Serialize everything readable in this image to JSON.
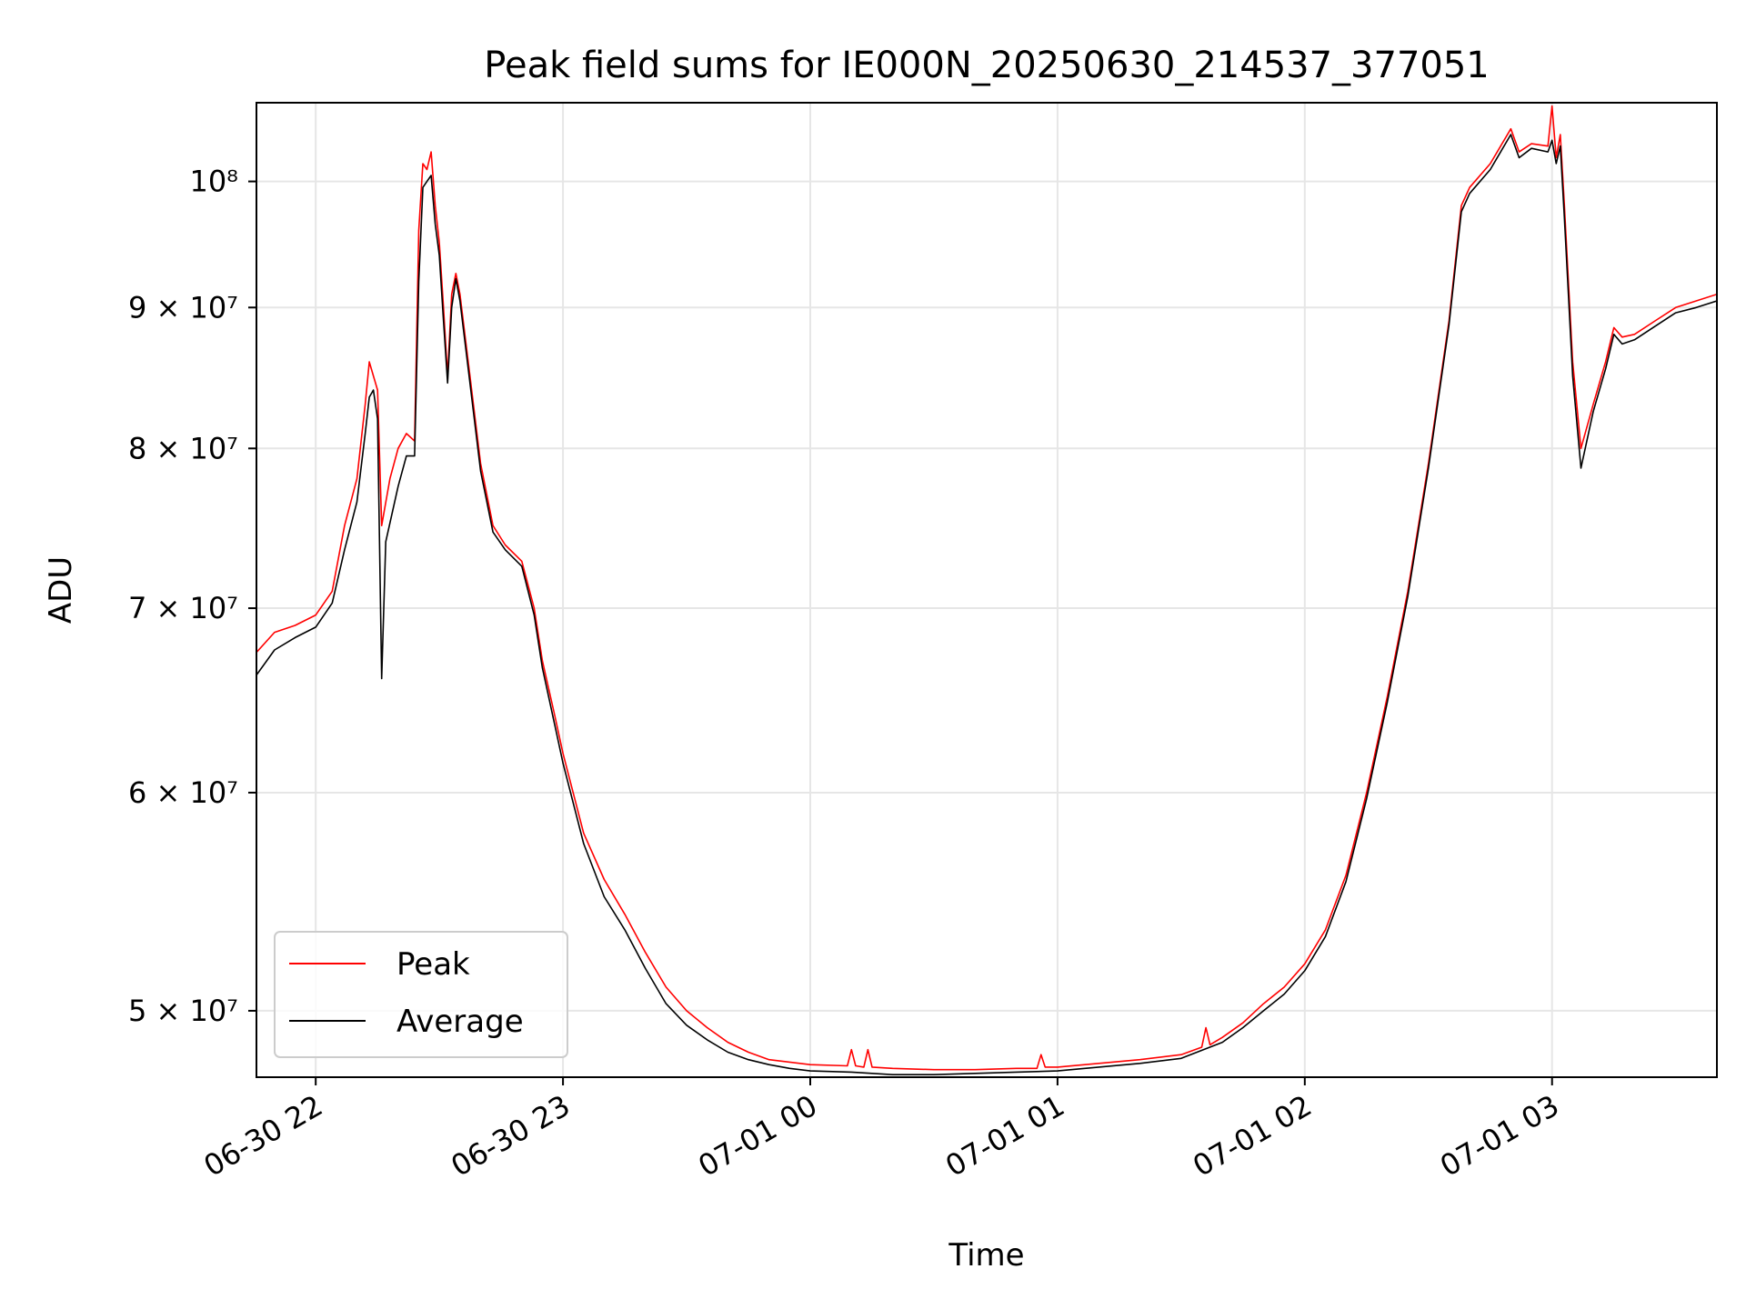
{
  "chart_data": {
    "type": "line",
    "title": "Peak field sums for IE000N_20250630_214537_377051",
    "xlabel": "Time",
    "ylabel": "ADU",
    "yscale": "log",
    "xlim": [
      "2025-06-30 21:45:37",
      "2025-07-01 03:40:00"
    ],
    "ylim": [
      47300000,
      106800000
    ],
    "grid": true,
    "legend_position": "lower-left",
    "x_ticks": [
      {
        "value": "2025-06-30 22:00",
        "label": "06-30 22"
      },
      {
        "value": "2025-06-30 23:00",
        "label": "06-30 23"
      },
      {
        "value": "2025-07-01 00:00",
        "label": "07-01 00"
      },
      {
        "value": "2025-07-01 01:00",
        "label": "07-01 01"
      },
      {
        "value": "2025-07-01 02:00",
        "label": "07-01 02"
      },
      {
        "value": "2025-07-01 03:00",
        "label": "07-01 03"
      }
    ],
    "y_ticks": [
      {
        "value": 50000000,
        "label": "5 × 10⁷"
      },
      {
        "value": 60000000,
        "label": "6 × 10⁷"
      },
      {
        "value": 70000000,
        "label": "7 × 10⁷"
      },
      {
        "value": 80000000,
        "label": "8 × 10⁷"
      },
      {
        "value": 90000000,
        "label": "9 × 10⁷"
      },
      {
        "value": 100000000,
        "label": "10⁸"
      }
    ],
    "series": [
      {
        "name": "Peak",
        "color": "#ff0000",
        "points": [
          [
            "2025-06-30 21:45",
            67300000
          ],
          [
            "2025-06-30 21:50",
            68600000
          ],
          [
            "2025-06-30 21:55",
            69000000
          ],
          [
            "2025-06-30 22:00",
            69600000
          ],
          [
            "2025-06-30 22:04",
            71000000
          ],
          [
            "2025-06-30 22:07",
            75000000
          ],
          [
            "2025-06-30 22:10",
            78000000
          ],
          [
            "2025-06-30 22:12",
            83000000
          ],
          [
            "2025-06-30 22:13",
            86000000
          ],
          [
            "2025-06-30 22:14",
            85000000
          ],
          [
            "2025-06-30 22:15",
            84000000
          ],
          [
            "2025-06-30 22:16",
            75000000
          ],
          [
            "2025-06-30 22:18",
            78000000
          ],
          [
            "2025-06-30 22:20",
            80000000
          ],
          [
            "2025-06-30 22:22",
            81000000
          ],
          [
            "2025-06-30 22:24",
            80500000
          ],
          [
            "2025-06-30 22:25",
            96000000
          ],
          [
            "2025-06-30 22:26",
            101500000
          ],
          [
            "2025-06-30 22:27",
            101000000
          ],
          [
            "2025-06-30 22:28",
            102500000
          ],
          [
            "2025-06-30 22:29",
            98000000
          ],
          [
            "2025-06-30 22:30",
            95000000
          ],
          [
            "2025-06-30 22:31",
            90000000
          ],
          [
            "2025-06-30 22:32",
            85000000
          ],
          [
            "2025-06-30 22:33",
            91000000
          ],
          [
            "2025-06-30 22:34",
            92600000
          ],
          [
            "2025-06-30 22:35",
            91000000
          ],
          [
            "2025-06-30 22:37",
            86000000
          ],
          [
            "2025-06-30 22:40",
            79000000
          ],
          [
            "2025-06-30 22:43",
            75000000
          ],
          [
            "2025-06-30 22:46",
            73800000
          ],
          [
            "2025-06-30 22:50",
            72800000
          ],
          [
            "2025-06-30 22:53",
            70000000
          ],
          [
            "2025-06-30 22:55",
            67000000
          ],
          [
            "2025-06-30 22:58",
            64000000
          ],
          [
            "2025-06-30 23:00",
            62000000
          ],
          [
            "2025-06-30 23:05",
            58000000
          ],
          [
            "2025-06-30 23:10",
            55800000
          ],
          [
            "2025-06-30 23:15",
            54200000
          ],
          [
            "2025-06-30 23:20",
            52500000
          ],
          [
            "2025-06-30 23:25",
            51000000
          ],
          [
            "2025-06-30 23:30",
            50000000
          ],
          [
            "2025-06-30 23:35",
            49300000
          ],
          [
            "2025-06-30 23:40",
            48700000
          ],
          [
            "2025-06-30 23:45",
            48300000
          ],
          [
            "2025-06-30 23:50",
            48000000
          ],
          [
            "2025-06-30 23:55",
            47900000
          ],
          [
            "2025-07-01 00:00",
            47800000
          ],
          [
            "2025-07-01 00:09",
            47750000
          ],
          [
            "2025-07-01 00:10",
            48400000
          ],
          [
            "2025-07-01 00:11",
            47750000
          ],
          [
            "2025-07-01 00:13",
            47700000
          ],
          [
            "2025-07-01 00:14",
            48400000
          ],
          [
            "2025-07-01 00:15",
            47700000
          ],
          [
            "2025-07-01 00:20",
            47650000
          ],
          [
            "2025-07-01 00:30",
            47600000
          ],
          [
            "2025-07-01 00:40",
            47600000
          ],
          [
            "2025-07-01 00:50",
            47650000
          ],
          [
            "2025-07-01 00:55",
            47650000
          ],
          [
            "2025-07-01 00:56",
            48200000
          ],
          [
            "2025-07-01 00:57",
            47700000
          ],
          [
            "2025-07-01 01:00",
            47700000
          ],
          [
            "2025-07-01 01:10",
            47850000
          ],
          [
            "2025-07-01 01:20",
            48000000
          ],
          [
            "2025-07-01 01:30",
            48200000
          ],
          [
            "2025-07-01 01:35",
            48500000
          ],
          [
            "2025-07-01 01:36",
            49300000
          ],
          [
            "2025-07-01 01:37",
            48600000
          ],
          [
            "2025-07-01 01:40",
            48900000
          ],
          [
            "2025-07-01 01:45",
            49500000
          ],
          [
            "2025-07-01 01:50",
            50300000
          ],
          [
            "2025-07-01 01:55",
            51000000
          ],
          [
            "2025-07-01 02:00",
            52000000
          ],
          [
            "2025-07-01 02:05",
            53500000
          ],
          [
            "2025-07-01 02:10",
            56000000
          ],
          [
            "2025-07-01 02:15",
            60000000
          ],
          [
            "2025-07-01 02:20",
            65000000
          ],
          [
            "2025-07-01 02:25",
            71000000
          ],
          [
            "2025-07-01 02:30",
            79000000
          ],
          [
            "2025-07-01 02:35",
            89000000
          ],
          [
            "2025-07-01 02:38",
            98000000
          ],
          [
            "2025-07-01 02:40",
            99500000
          ],
          [
            "2025-07-01 02:45",
            101500000
          ],
          [
            "2025-07-01 02:50",
            104500000
          ],
          [
            "2025-07-01 02:52",
            102500000
          ],
          [
            "2025-07-01 02:55",
            103200000
          ],
          [
            "2025-07-01 02:59",
            103000000
          ],
          [
            "2025-07-01 03:00",
            106500000
          ],
          [
            "2025-07-01 03:01",
            102000000
          ],
          [
            "2025-07-01 03:02",
            104000000
          ],
          [
            "2025-07-01 03:03",
            98000000
          ],
          [
            "2025-07-01 03:05",
            86000000
          ],
          [
            "2025-07-01 03:07",
            80000000
          ],
          [
            "2025-07-01 03:10",
            83000000
          ],
          [
            "2025-07-01 03:13",
            86000000
          ],
          [
            "2025-07-01 03:15",
            88500000
          ],
          [
            "2025-07-01 03:17",
            87800000
          ],
          [
            "2025-07-01 03:20",
            88000000
          ],
          [
            "2025-07-01 03:25",
            89000000
          ],
          [
            "2025-07-01 03:30",
            90000000
          ],
          [
            "2025-07-01 03:35",
            90500000
          ],
          [
            "2025-07-01 03:40",
            91000000
          ]
        ]
      },
      {
        "name": "Average",
        "color": "#000000",
        "points": [
          [
            "2025-06-30 21:45",
            66000000
          ],
          [
            "2025-06-30 21:50",
            67600000
          ],
          [
            "2025-06-30 21:55",
            68300000
          ],
          [
            "2025-06-30 22:00",
            68900000
          ],
          [
            "2025-06-30 22:04",
            70300000
          ],
          [
            "2025-06-30 22:07",
            73500000
          ],
          [
            "2025-06-30 22:10",
            76500000
          ],
          [
            "2025-06-30 22:12",
            81000000
          ],
          [
            "2025-06-30 22:13",
            83500000
          ],
          [
            "2025-06-30 22:14",
            84000000
          ],
          [
            "2025-06-30 22:15",
            82000000
          ],
          [
            "2025-06-30 22:16",
            66000000
          ],
          [
            "2025-06-30 22:17",
            74000000
          ],
          [
            "2025-06-30 22:20",
            77500000
          ],
          [
            "2025-06-30 22:22",
            79500000
          ],
          [
            "2025-06-30 22:24",
            79500000
          ],
          [
            "2025-06-30 22:25",
            92000000
          ],
          [
            "2025-06-30 22:26",
            99500000
          ],
          [
            "2025-06-30 22:27",
            100000000
          ],
          [
            "2025-06-30 22:28",
            100500000
          ],
          [
            "2025-06-30 22:29",
            96500000
          ],
          [
            "2025-06-30 22:30",
            94000000
          ],
          [
            "2025-06-30 22:31",
            89000000
          ],
          [
            "2025-06-30 22:32",
            84500000
          ],
          [
            "2025-06-30 22:33",
            90000000
          ],
          [
            "2025-06-30 22:34",
            92200000
          ],
          [
            "2025-06-30 22:35",
            90500000
          ],
          [
            "2025-06-30 22:37",
            85500000
          ],
          [
            "2025-06-30 22:40",
            78500000
          ],
          [
            "2025-06-30 22:43",
            74600000
          ],
          [
            "2025-06-30 22:46",
            73500000
          ],
          [
            "2025-06-30 22:50",
            72500000
          ],
          [
            "2025-06-30 22:53",
            69600000
          ],
          [
            "2025-06-30 22:55",
            66600000
          ],
          [
            "2025-06-30 22:58",
            63500000
          ],
          [
            "2025-06-30 23:00",
            61500000
          ],
          [
            "2025-06-30 23:05",
            57500000
          ],
          [
            "2025-06-30 23:10",
            55000000
          ],
          [
            "2025-06-30 23:15",
            53500000
          ],
          [
            "2025-06-30 23:20",
            51800000
          ],
          [
            "2025-06-30 23:25",
            50300000
          ],
          [
            "2025-06-30 23:30",
            49400000
          ],
          [
            "2025-06-30 23:35",
            48800000
          ],
          [
            "2025-06-30 23:40",
            48300000
          ],
          [
            "2025-06-30 23:45",
            48000000
          ],
          [
            "2025-06-30 23:50",
            47800000
          ],
          [
            "2025-06-30 23:55",
            47650000
          ],
          [
            "2025-07-01 00:00",
            47550000
          ],
          [
            "2025-07-01 00:10",
            47500000
          ],
          [
            "2025-07-01 00:20",
            47400000
          ],
          [
            "2025-07-01 00:30",
            47400000
          ],
          [
            "2025-07-01 00:40",
            47450000
          ],
          [
            "2025-07-01 00:50",
            47500000
          ],
          [
            "2025-07-01 01:00",
            47550000
          ],
          [
            "2025-07-01 01:10",
            47700000
          ],
          [
            "2025-07-01 01:20",
            47850000
          ],
          [
            "2025-07-01 01:30",
            48050000
          ],
          [
            "2025-07-01 01:40",
            48700000
          ],
          [
            "2025-07-01 01:45",
            49300000
          ],
          [
            "2025-07-01 01:50",
            50000000
          ],
          [
            "2025-07-01 01:55",
            50700000
          ],
          [
            "2025-07-01 02:00",
            51700000
          ],
          [
            "2025-07-01 02:05",
            53200000
          ],
          [
            "2025-07-01 02:10",
            55700000
          ],
          [
            "2025-07-01 02:15",
            59700000
          ],
          [
            "2025-07-01 02:20",
            64700000
          ],
          [
            "2025-07-01 02:25",
            70700000
          ],
          [
            "2025-07-01 02:30",
            78700000
          ],
          [
            "2025-07-01 02:35",
            88700000
          ],
          [
            "2025-07-01 02:38",
            97500000
          ],
          [
            "2025-07-01 02:40",
            99000000
          ],
          [
            "2025-07-01 02:45",
            101000000
          ],
          [
            "2025-07-01 02:50",
            104000000
          ],
          [
            "2025-07-01 02:52",
            102000000
          ],
          [
            "2025-07-01 02:55",
            102800000
          ],
          [
            "2025-07-01 02:59",
            102500000
          ],
          [
            "2025-07-01 03:00",
            103500000
          ],
          [
            "2025-07-01 03:01",
            101500000
          ],
          [
            "2025-07-01 03:02",
            103000000
          ],
          [
            "2025-07-01 03:03",
            97000000
          ],
          [
            "2025-07-01 03:05",
            85000000
          ],
          [
            "2025-07-01 03:07",
            78700000
          ],
          [
            "2025-07-01 03:10",
            82500000
          ],
          [
            "2025-07-01 03:13",
            85500000
          ],
          [
            "2025-07-01 03:15",
            88000000
          ],
          [
            "2025-07-01 03:17",
            87300000
          ],
          [
            "2025-07-01 03:20",
            87600000
          ],
          [
            "2025-07-01 03:25",
            88600000
          ],
          [
            "2025-07-01 03:30",
            89600000
          ],
          [
            "2025-07-01 03:35",
            90000000
          ],
          [
            "2025-07-01 03:40",
            90500000
          ]
        ]
      }
    ]
  }
}
